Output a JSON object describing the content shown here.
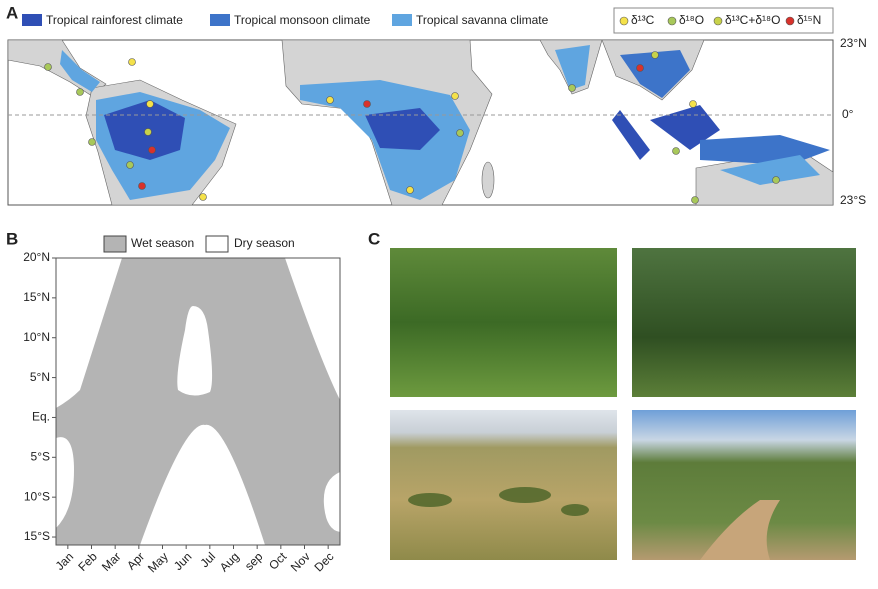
{
  "panel_a": {
    "label": "A",
    "legend": [
      "Tropical rainforest climate",
      "Tropical monsoon climate",
      "Tropical savanna climate"
    ],
    "isotope_legend": [
      "δ¹³C",
      "δ¹⁸O",
      "δ¹³C+δ¹⁸O",
      "δ¹⁵N"
    ],
    "latitude_labels": [
      "23°N",
      "0°",
      "23°S"
    ]
  },
  "panel_b": {
    "label": "B",
    "legend": [
      "Wet season",
      "Dry season"
    ],
    "y_labels": [
      "20°N",
      "15°N",
      "10°N",
      "5°N",
      "Eq.",
      "5°S",
      "10°S",
      "15°S"
    ],
    "x_labels": [
      "Jan",
      "Feb",
      "Mar",
      "Apr",
      "May",
      "Jun",
      "Jul",
      "Aug",
      "sep",
      "Oct",
      "Nov",
      "Dec"
    ]
  },
  "panel_c": {
    "label": "C"
  }
}
